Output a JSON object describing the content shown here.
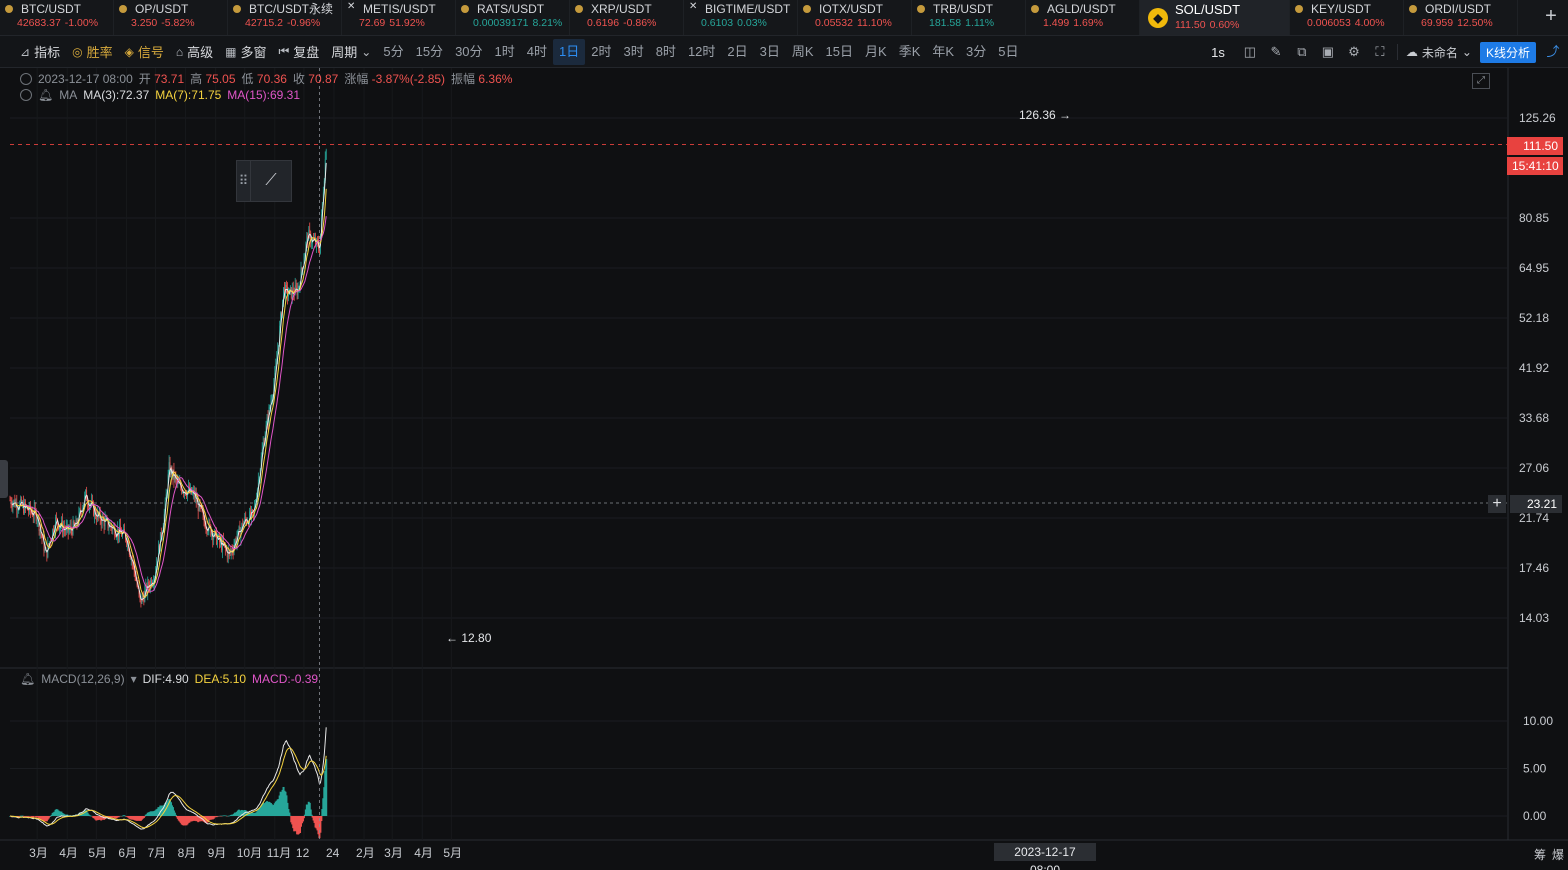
{
  "tickers": [
    {
      "symbol": "BTC/USDT",
      "price": "42683.37",
      "change": "-1.00%",
      "dir": "down",
      "icon": "coin-dot-icon"
    },
    {
      "symbol": "OP/USDT",
      "price": "3.250",
      "change": "-5.82%",
      "dir": "down",
      "icon": "coin-dot-icon"
    },
    {
      "symbol": "BTC/USDT永续",
      "price": "42715.2",
      "change": "-0.96%",
      "dir": "down",
      "icon": "coin-dot-icon"
    },
    {
      "symbol": "METIS/USDT",
      "price": "72.69",
      "change": "51.92%",
      "dir": "down",
      "icon": "close-x-icon"
    },
    {
      "symbol": "RATS/USDT",
      "price": "0.00039171",
      "change": "8.21%",
      "dir": "up",
      "icon": "coin-dot-icon"
    },
    {
      "symbol": "XRP/USDT",
      "price": "0.6196",
      "change": "-0.86%",
      "dir": "down",
      "icon": "coin-dot-icon"
    },
    {
      "symbol": "BIGTIME/USDT",
      "price": "0.6103",
      "change": "0.03%",
      "dir": "up",
      "icon": "close-x-icon"
    },
    {
      "symbol": "IOTX/USDT",
      "price": "0.05532",
      "change": "11.10%",
      "dir": "down",
      "icon": "coin-dot-icon"
    },
    {
      "symbol": "TRB/USDT",
      "price": "181.58",
      "change": "1.11%",
      "dir": "up",
      "icon": "coin-dot-icon"
    },
    {
      "symbol": "AGLD/USDT",
      "price": "1.499",
      "change": "1.69%",
      "dir": "down",
      "icon": "coin-dot-icon"
    },
    {
      "symbol": "SOL/USDT",
      "price": "111.50",
      "change": "0.60%",
      "dir": "down",
      "icon": "binance-logo-icon",
      "active": true
    },
    {
      "symbol": "KEY/USDT",
      "price": "0.006053",
      "change": "4.00%",
      "dir": "down",
      "icon": "coin-dot-icon"
    },
    {
      "symbol": "ORDI/USDT",
      "price": "69.959",
      "change": "12.50%",
      "dir": "down",
      "icon": "coin-dot-icon"
    }
  ],
  "toolbar": {
    "indicator": "指标",
    "winrate": "胜率",
    "signal": "信号",
    "advanced": "高级",
    "multiwin": "多窗",
    "replay": "复盘",
    "period": "周期",
    "periods": [
      "5分",
      "15分",
      "30分",
      "1时",
      "4时",
      "1日",
      "2时",
      "3时",
      "8时",
      "12时",
      "2日",
      "3日",
      "周K",
      "15日",
      "月K",
      "季K",
      "年K",
      "3分",
      "5日"
    ],
    "selected_period": "1日",
    "interval": "1s",
    "layout_name": "未命名",
    "kline_analysis": "K线分析"
  },
  "legend": {
    "date": "2023-12-17 08:00",
    "open_label": "开",
    "open": "73.71",
    "high_label": "高",
    "high": "75.05",
    "low_label": "低",
    "low": "70.36",
    "close_label": "收",
    "close": "70.87",
    "chg_label": "涨幅",
    "chg": "-3.87%(-2.85)",
    "amp_label": "振幅",
    "amp": "6.36%",
    "ma_title": "MA",
    "ma3": "MA(3):72.37",
    "ma7": "MA(7):71.75",
    "ma15": "MA(15):69.31"
  },
  "macd_legend": {
    "title": "MACD(12,26,9)",
    "dif": "DIF:4.90",
    "dea": "DEA:5.10",
    "macd": "MACD:-0.39"
  },
  "labels": {
    "high_marker": "126.36 →",
    "low_marker": "← 12.80",
    "last_price": "111.50",
    "countdown": "15:41:10",
    "cross_price": "23.21",
    "cross_time": "2023-12-17 08:00",
    "corner": [
      "筹",
      "爆"
    ]
  },
  "colors": {
    "up": "#26a69a",
    "down": "#ef5350",
    "ma3": "#e8e8e8",
    "ma7": "#f5d33f",
    "ma15": "#e056c8",
    "accent": "#1e7be6"
  },
  "chart_data": {
    "type": "candlestick",
    "title": "SOL/USDT 1日",
    "price_axis_ticks": [
      125.26,
      80.85,
      64.95,
      52.18,
      41.92,
      33.68,
      27.06,
      21.74,
      17.46,
      14.03
    ],
    "price_scale": "log",
    "macd_axis_ticks": [
      10.0,
      5.0,
      0.0
    ],
    "time_axis_ticks": [
      "3月",
      "4月",
      "5月",
      "6月",
      "7月",
      "8月",
      "9月",
      "10月",
      "11月",
      "12",
      "24",
      "2月",
      "3月",
      "4月",
      "5月"
    ],
    "approx_close_path": [
      [
        "2023-02-01",
        23.5
      ],
      [
        "2023-02-15",
        22.8
      ],
      [
        "2023-03-01",
        22.0
      ],
      [
        "2023-03-10",
        18.5
      ],
      [
        "2023-03-20",
        21.5
      ],
      [
        "2023-04-01",
        20.5
      ],
      [
        "2023-04-10",
        21.0
      ],
      [
        "2023-04-20",
        24.0
      ],
      [
        "2023-05-01",
        22.0
      ],
      [
        "2023-05-15",
        21.0
      ],
      [
        "2023-06-01",
        20.0
      ],
      [
        "2023-06-10",
        17.0
      ],
      [
        "2023-06-15",
        15.0
      ],
      [
        "2023-06-30",
        17.0
      ],
      [
        "2023-07-10",
        22.0
      ],
      [
        "2023-07-15",
        27.0
      ],
      [
        "2023-07-25",
        25.0
      ],
      [
        "2023-08-10",
        24.0
      ],
      [
        "2023-08-20",
        21.5
      ],
      [
        "2023-09-01",
        20.0
      ],
      [
        "2023-09-15",
        18.5
      ],
      [
        "2023-10-01",
        21.5
      ],
      [
        "2023-10-10",
        22.0
      ],
      [
        "2023-10-20",
        30.0
      ],
      [
        "2023-11-01",
        40.0
      ],
      [
        "2023-11-10",
        59.0
      ],
      [
        "2023-11-15",
        58.0
      ],
      [
        "2023-11-25",
        59.0
      ],
      [
        "2023-12-05",
        75.0
      ],
      [
        "2023-12-17",
        70.87
      ],
      [
        "2023-12-24",
        111.5
      ]
    ],
    "high": 126.36,
    "low": 12.8,
    "last_price": 111.5
  }
}
